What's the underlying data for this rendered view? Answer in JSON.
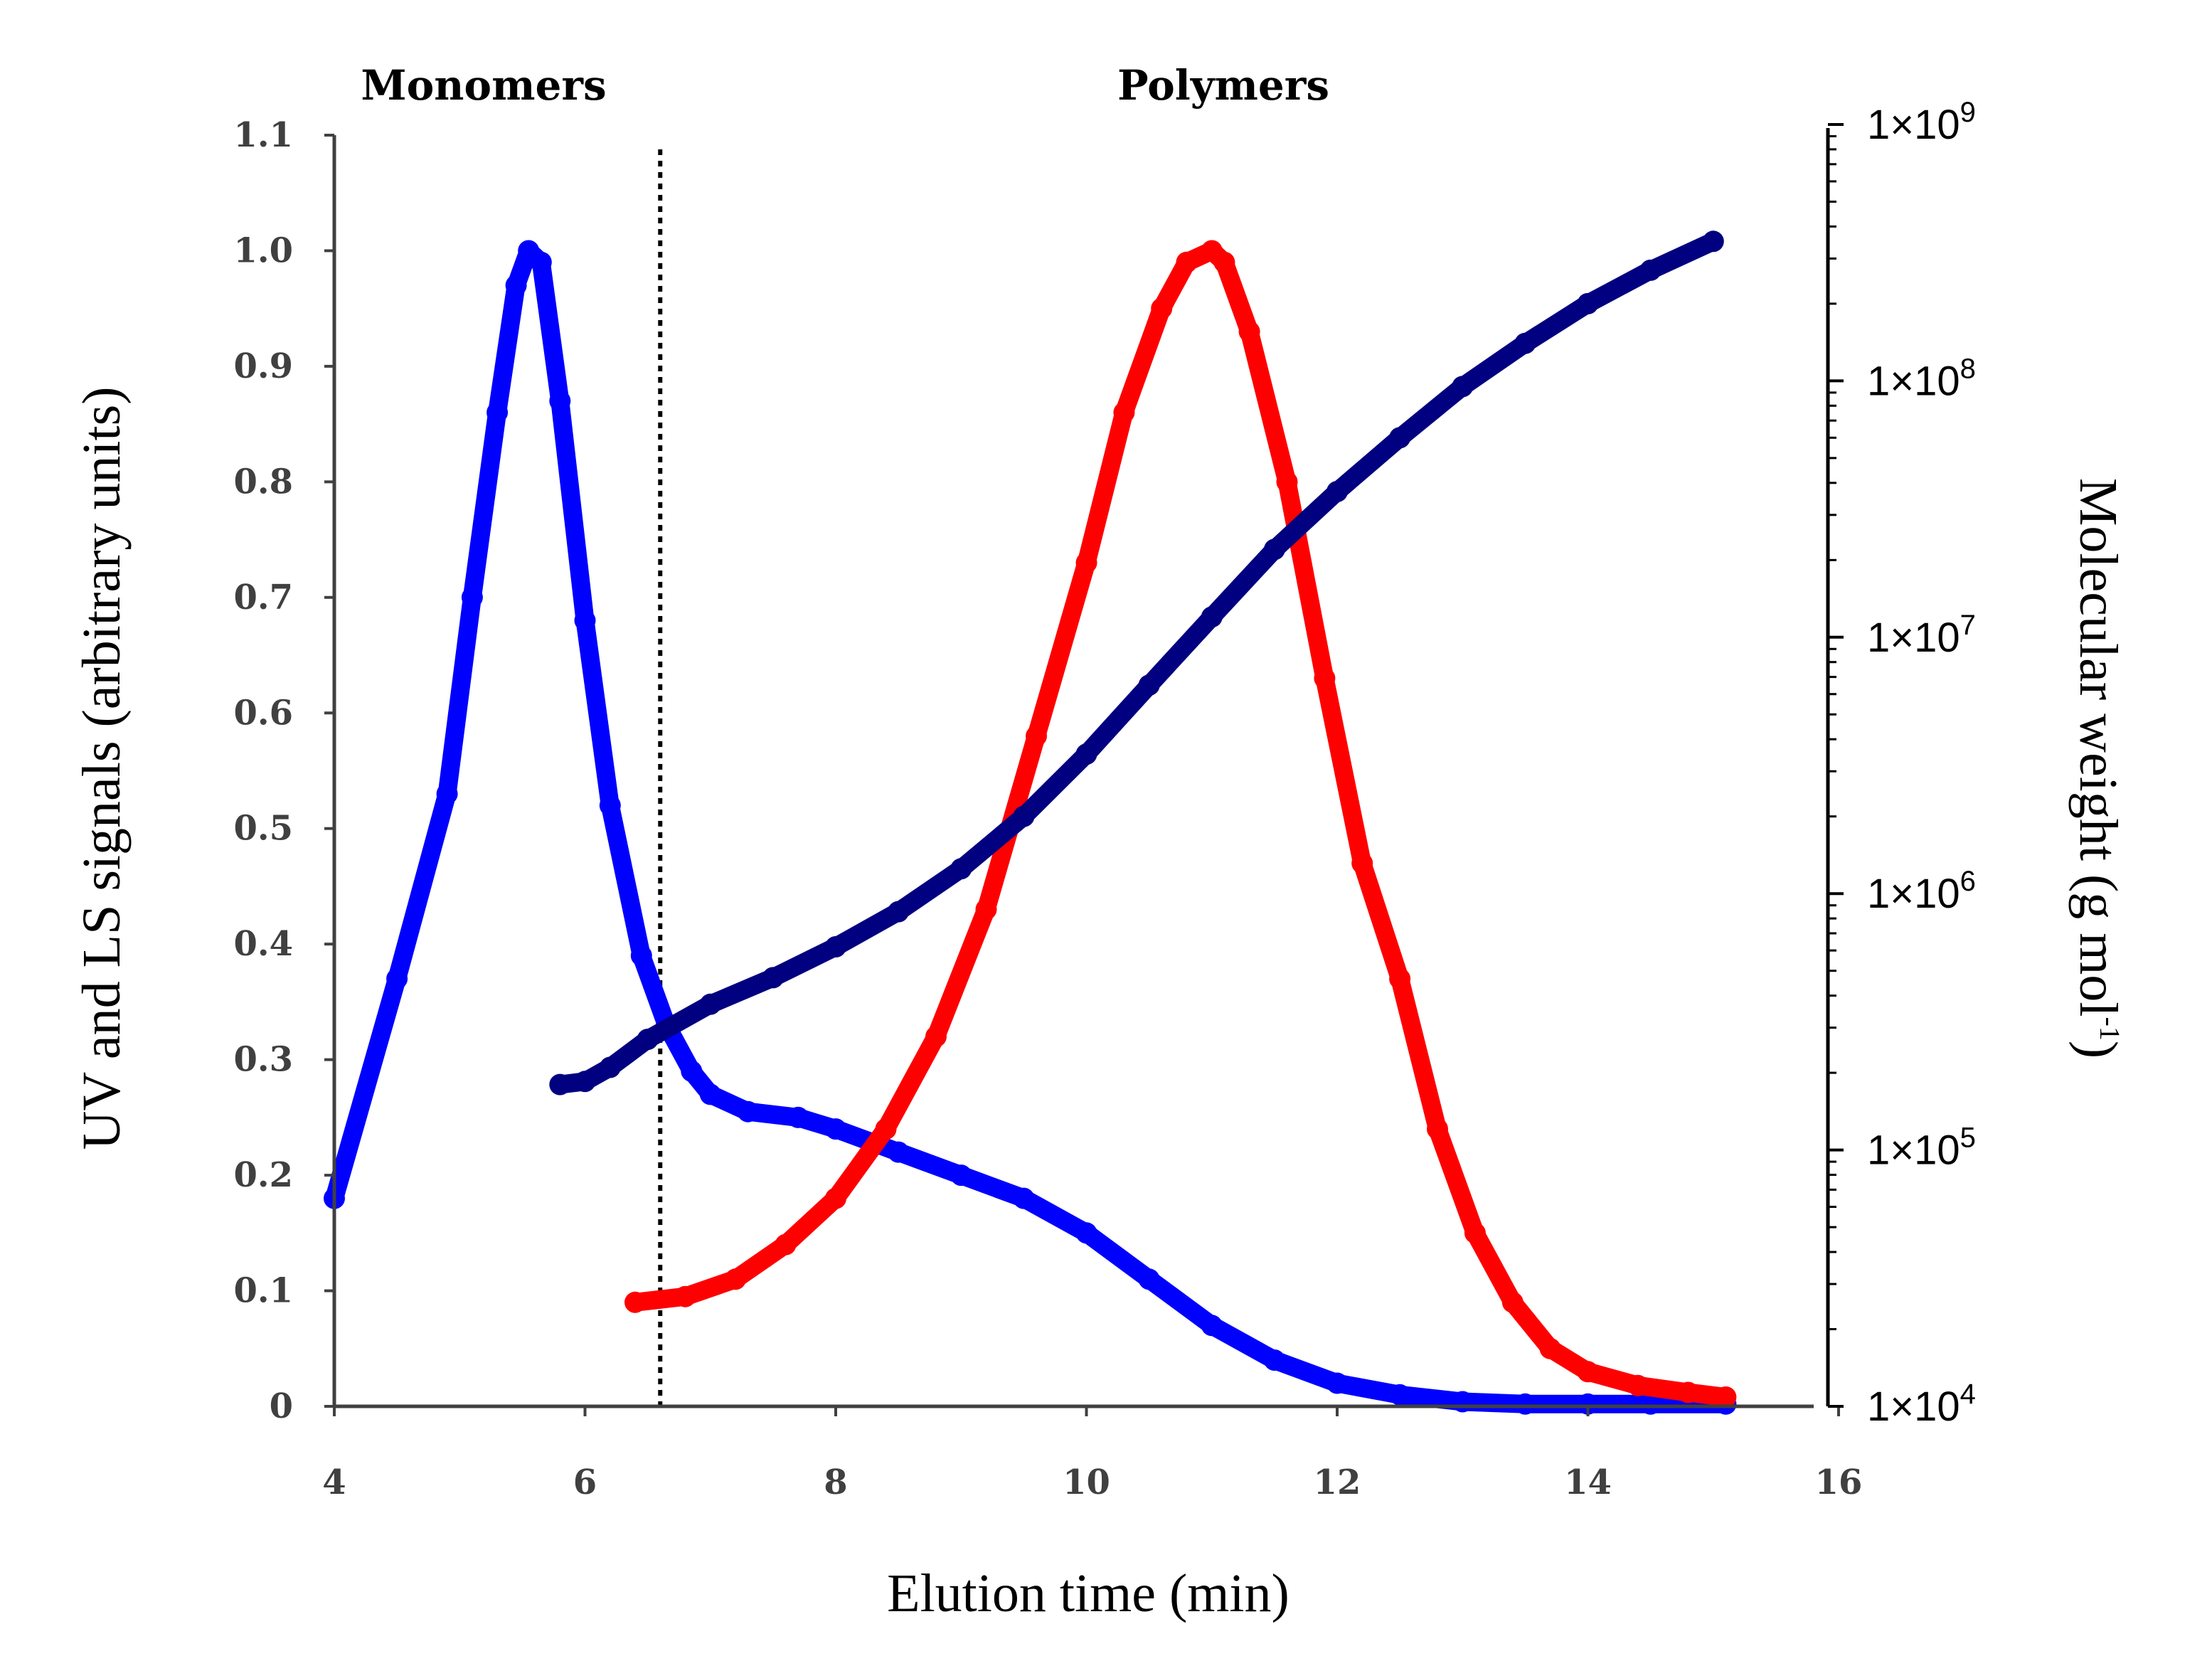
{
  "chart_data": {
    "type": "line",
    "region_labels": {
      "left": "Monomers",
      "right": "Polymers"
    },
    "divider_x": 6.6,
    "x_axis": {
      "label": "Elution time (min)",
      "range": [
        4,
        16
      ],
      "ticks": [
        "4",
        "6",
        "8",
        "10",
        "12",
        "14",
        "16"
      ]
    },
    "y_left": {
      "label": "UV and LS signals (arbitrary units)",
      "range": [
        0,
        1.1
      ],
      "ticks": [
        "0",
        "0.1",
        "0.2",
        "0.3",
        "0.4",
        "0.5",
        "0.6",
        "0.7",
        "0.8",
        "0.9",
        "1.0",
        "1.1"
      ]
    },
    "y_right": {
      "label": "Molecular weight (g mol",
      "label_sup": "-1",
      "label_tail": ")",
      "scale": "log",
      "range": [
        10000,
        1000000000
      ],
      "ticks": [
        {
          "base": "1×10",
          "exp": "4"
        },
        {
          "base": "1×10",
          "exp": "5"
        },
        {
          "base": "1×10",
          "exp": "6"
        },
        {
          "base": "1×10",
          "exp": "7"
        },
        {
          "base": "1×10",
          "exp": "8"
        },
        {
          "base": "1×10",
          "exp": "9"
        }
      ]
    },
    "series": [
      {
        "name": "Monomer signal (blue)",
        "axis": "left",
        "color": "#0000ff",
        "x": [
          4.0,
          4.5,
          4.9,
          5.1,
          5.3,
          5.45,
          5.55,
          5.65,
          5.8,
          6.0,
          6.2,
          6.45,
          6.65,
          6.85,
          7.0,
          7.3,
          7.7,
          8.0,
          8.5,
          9.0,
          9.5,
          10.0,
          10.5,
          11.0,
          11.5,
          12.0,
          12.5,
          13.0,
          13.5,
          14.0,
          14.5,
          15.1
        ],
        "y": [
          0.18,
          0.37,
          0.53,
          0.7,
          0.86,
          0.97,
          1.0,
          0.99,
          0.87,
          0.68,
          0.52,
          0.39,
          0.33,
          0.29,
          0.27,
          0.255,
          0.25,
          0.24,
          0.22,
          0.2,
          0.18,
          0.15,
          0.11,
          0.07,
          0.04,
          0.02,
          0.01,
          0.004,
          0.002,
          0.002,
          0.002,
          0.002
        ]
      },
      {
        "name": "Polymer signal (red)",
        "axis": "left",
        "color": "#ff0000",
        "x": [
          6.4,
          6.8,
          7.2,
          7.6,
          8.0,
          8.4,
          8.8,
          9.2,
          9.6,
          10.0,
          10.3,
          10.6,
          10.8,
          11.0,
          11.1,
          11.3,
          11.6,
          11.9,
          12.2,
          12.5,
          12.8,
          13.1,
          13.4,
          13.7,
          14.0,
          14.4,
          14.8,
          15.1
        ],
        "y": [
          0.09,
          0.095,
          0.11,
          0.14,
          0.18,
          0.24,
          0.32,
          0.43,
          0.58,
          0.73,
          0.86,
          0.95,
          0.99,
          1.0,
          0.99,
          0.93,
          0.8,
          0.63,
          0.47,
          0.37,
          0.24,
          0.15,
          0.09,
          0.05,
          0.03,
          0.018,
          0.012,
          0.008
        ]
      },
      {
        "name": "Molecular weight (navy)",
        "axis": "right",
        "color": "#000080",
        "x": [
          5.8,
          6.0,
          6.2,
          6.5,
          7.0,
          7.5,
          8.0,
          8.5,
          9.0,
          9.5,
          10.0,
          10.5,
          11.0,
          11.5,
          12.0,
          12.5,
          13.0,
          13.5,
          14.0,
          14.5,
          15.0
        ],
        "y": [
          180000,
          185000,
          210000,
          270000,
          370000,
          470000,
          620000,
          850000,
          1250000,
          2000000,
          3500000,
          6500000,
          12000000,
          22000000,
          37000000,
          60000000,
          95000000,
          140000000,
          200000000,
          270000000,
          350000000
        ]
      }
    ]
  }
}
